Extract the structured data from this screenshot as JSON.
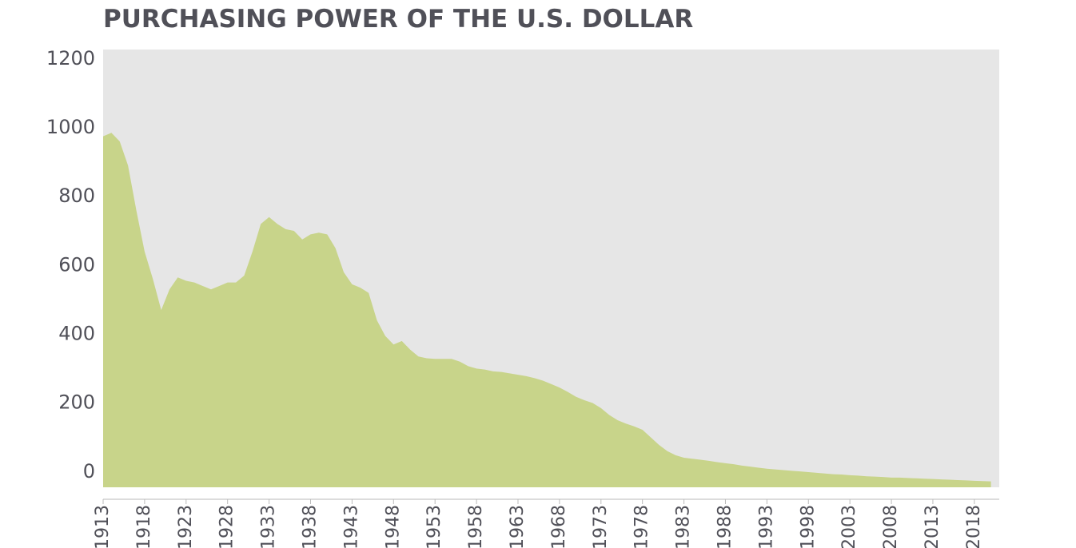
{
  "chart_data": {
    "type": "area",
    "title": "PURCHASING POWER OF THE U.S. DOLLAR",
    "x": [
      1913,
      1914,
      1915,
      1916,
      1917,
      1918,
      1919,
      1920,
      1921,
      1922,
      1923,
      1924,
      1925,
      1926,
      1927,
      1928,
      1929,
      1930,
      1931,
      1932,
      1933,
      1934,
      1935,
      1936,
      1937,
      1938,
      1939,
      1940,
      1941,
      1942,
      1943,
      1944,
      1945,
      1946,
      1947,
      1948,
      1949,
      1950,
      1951,
      1952,
      1953,
      1954,
      1955,
      1956,
      1957,
      1958,
      1959,
      1960,
      1961,
      1962,
      1963,
      1964,
      1965,
      1966,
      1967,
      1968,
      1969,
      1970,
      1971,
      1972,
      1973,
      1974,
      1975,
      1976,
      1977,
      1978,
      1979,
      1980,
      1981,
      1982,
      1983,
      1984,
      1985,
      1986,
      1987,
      1988,
      1989,
      1990,
      1991,
      1992,
      1993,
      1994,
      1995,
      1996,
      1997,
      1998,
      1999,
      2000,
      2001,
      2002,
      2003,
      2004,
      2005,
      2006,
      2007,
      2008,
      2009,
      2010,
      2011,
      2012,
      2013,
      2014,
      2015,
      2016,
      2017,
      2018,
      2019,
      2020
    ],
    "values": [
      1015,
      1025,
      1000,
      930,
      800,
      680,
      600,
      510,
      570,
      605,
      595,
      590,
      580,
      570,
      580,
      590,
      590,
      610,
      680,
      760,
      780,
      760,
      745,
      740,
      715,
      730,
      735,
      730,
      690,
      620,
      585,
      575,
      560,
      480,
      435,
      410,
      420,
      395,
      375,
      370,
      368,
      368,
      368,
      360,
      347,
      340,
      337,
      332,
      330,
      326,
      322,
      318,
      312,
      305,
      295,
      285,
      272,
      258,
      248,
      240,
      225,
      205,
      190,
      180,
      172,
      162,
      140,
      118,
      100,
      88,
      81,
      78,
      75,
      72,
      68,
      65,
      62,
      58,
      55,
      52,
      49,
      47,
      45,
      43,
      41,
      39,
      37,
      35,
      33,
      32,
      30,
      29,
      27,
      26,
      25,
      23,
      23,
      22,
      21,
      20,
      19,
      18,
      17,
      16,
      15,
      14,
      13,
      12
    ],
    "color": "#c8d48a",
    "xlim": [
      1913,
      2021
    ],
    "ylim": [
      -5,
      1267
    ],
    "yticks": [
      0,
      200,
      400,
      600,
      800,
      1000,
      1200
    ],
    "xticks": [
      1913,
      1918,
      1923,
      1928,
      1933,
      1938,
      1943,
      1948,
      1953,
      1958,
      1963,
      1968,
      1973,
      1978,
      1983,
      1988,
      1993,
      1998,
      2003,
      2008,
      2013,
      2018
    ]
  }
}
